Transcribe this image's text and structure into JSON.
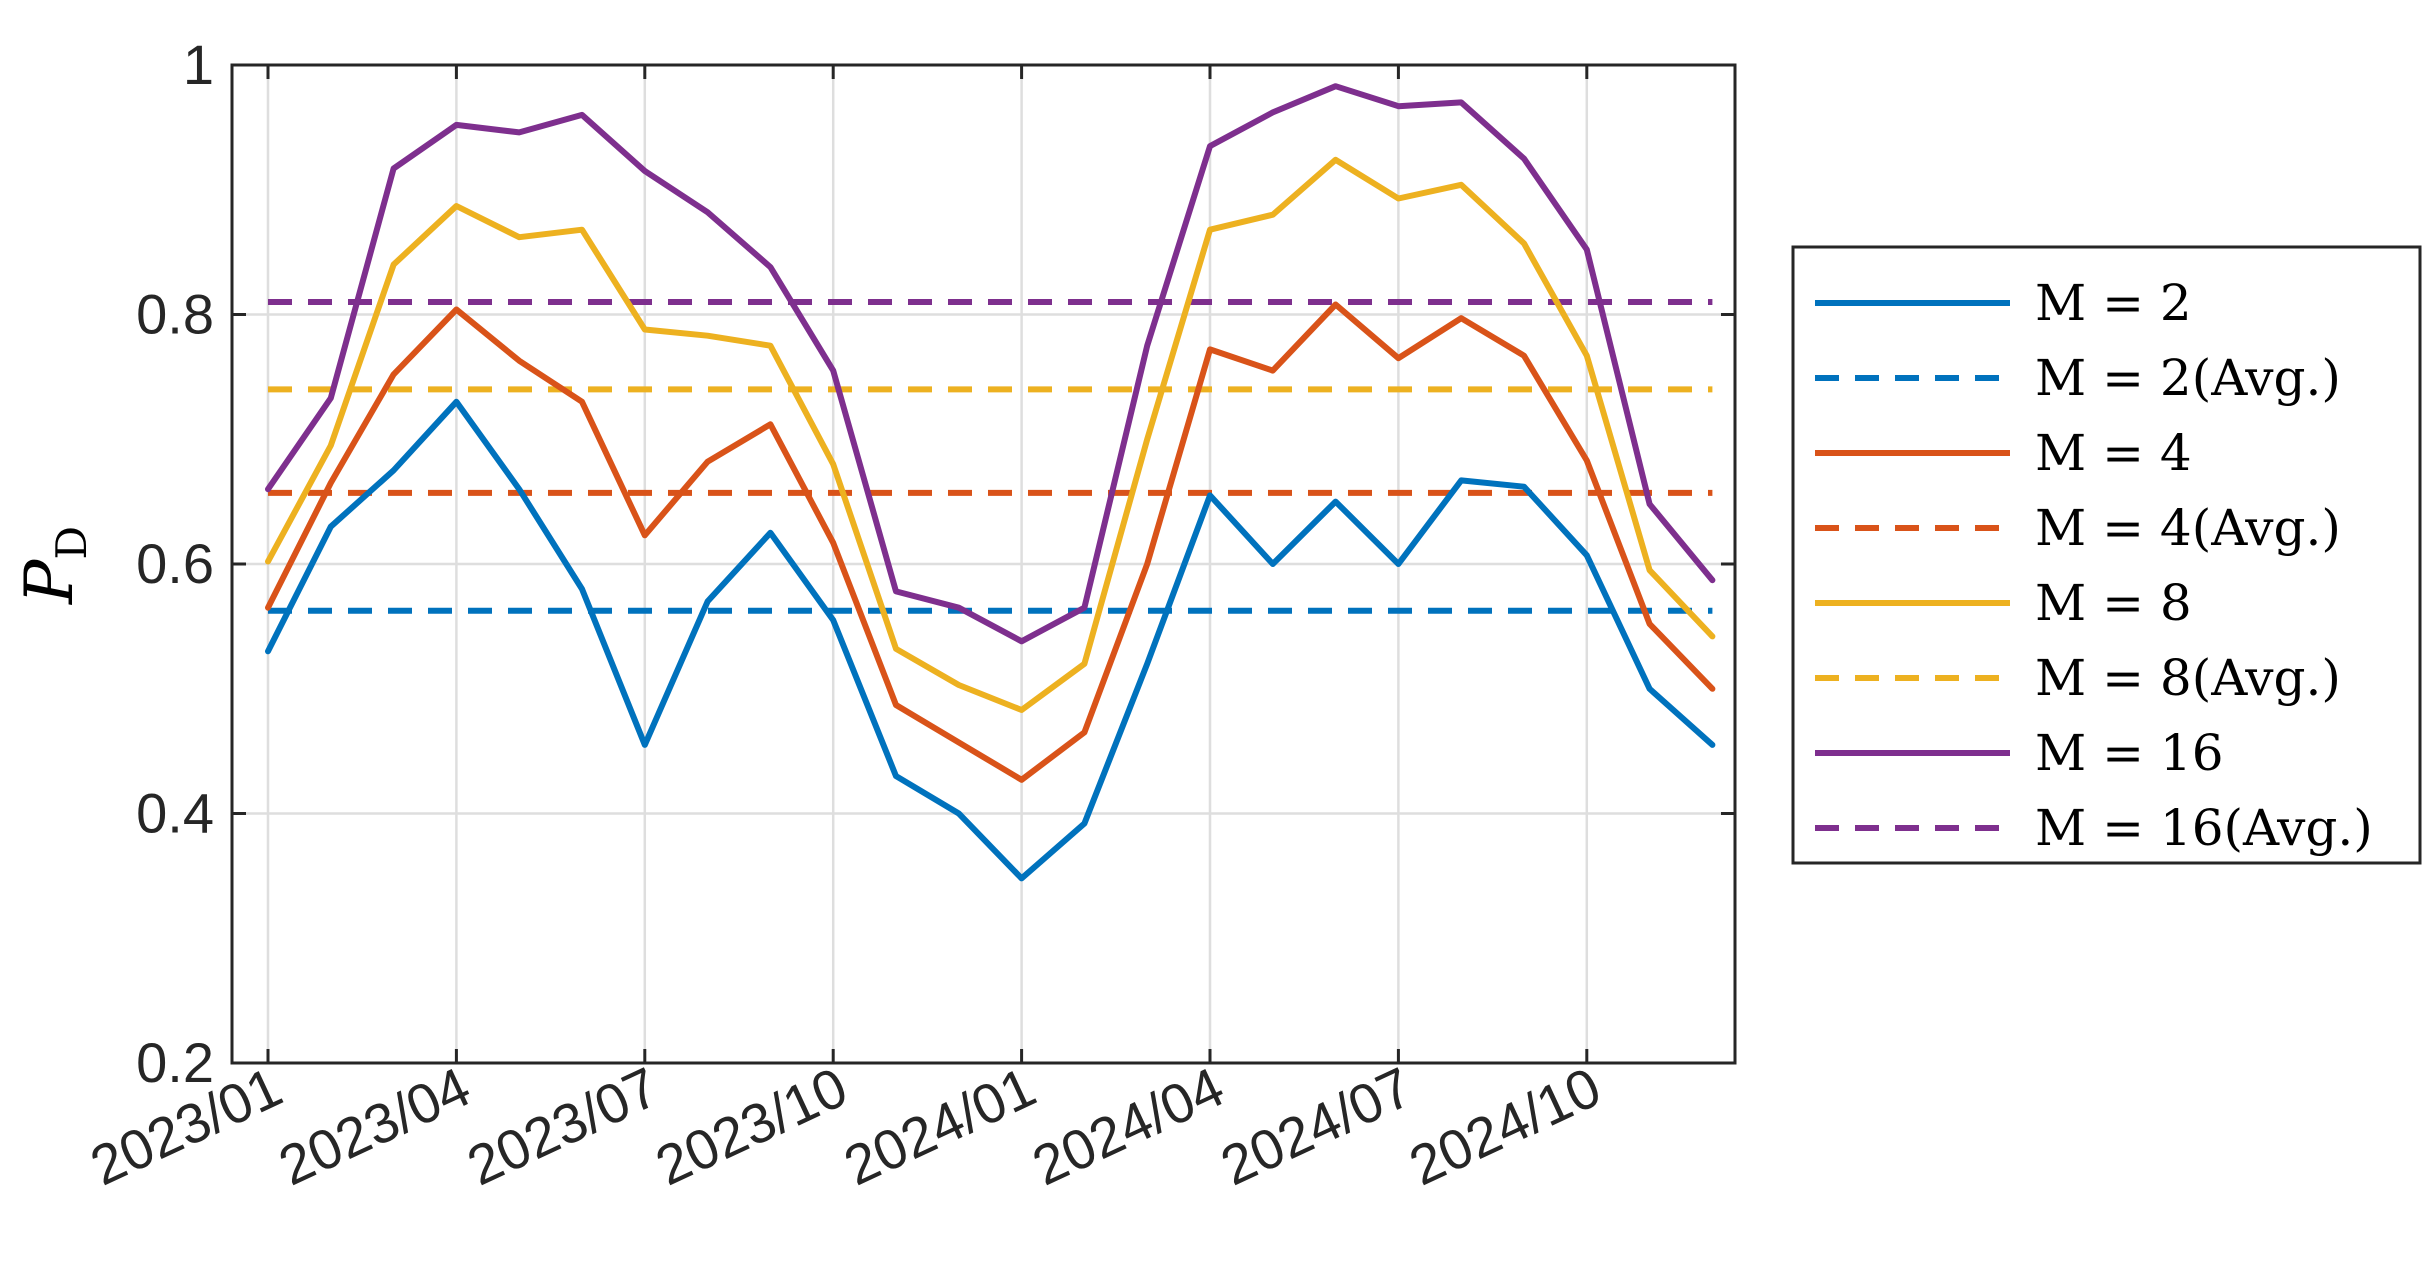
{
  "chart_data": {
    "type": "line",
    "title": "",
    "xlabel": "",
    "ylabel": {
      "main": "P",
      "sub": "D"
    },
    "ylim": [
      0.2,
      1.0
    ],
    "yticks": [
      0.2,
      0.4,
      0.6,
      0.8,
      1.0
    ],
    "ytick_labels": [
      "0.2",
      "0.4",
      "0.6",
      "0.8",
      "1"
    ],
    "xticks": [
      "2023/01",
      "2023/04",
      "2023/07",
      "2023/10",
      "2024/01",
      "2024/04",
      "2024/07",
      "2024/10"
    ],
    "x": [
      "2023/01",
      "2023/02",
      "2023/03",
      "2023/04",
      "2023/05",
      "2023/06",
      "2023/07",
      "2023/08",
      "2023/09",
      "2023/10",
      "2023/11",
      "2023/12",
      "2024/01",
      "2024/02",
      "2024/03",
      "2024/04",
      "2024/05",
      "2024/06",
      "2024/07",
      "2024/08",
      "2024/09",
      "2024/10",
      "2024/11",
      "2024/12"
    ],
    "grid": true,
    "legend_position": "outside-right",
    "series": [
      {
        "name": "M = 2",
        "color": "#0072BD",
        "style": "solid",
        "values": [
          0.53,
          0.63,
          0.675,
          0.73,
          0.66,
          0.58,
          0.455,
          0.57,
          0.625,
          0.555,
          0.43,
          0.4,
          0.348,
          0.392,
          0.52,
          0.655,
          0.6,
          0.65,
          0.6,
          0.667,
          0.662,
          0.607,
          0.5,
          0.455
        ]
      },
      {
        "name": "M = 2(Avg.)",
        "color": "#0072BD",
        "style": "dashed",
        "value": 0.5625
      },
      {
        "name": "M = 4",
        "color": "#D95319",
        "style": "solid",
        "values": [
          0.565,
          0.665,
          0.752,
          0.804,
          0.763,
          0.73,
          0.623,
          0.682,
          0.712,
          0.617,
          0.487,
          0.457,
          0.427,
          0.465,
          0.6,
          0.772,
          0.755,
          0.808,
          0.765,
          0.797,
          0.767,
          0.683,
          0.552,
          0.5
        ]
      },
      {
        "name": "M = 4(Avg.)",
        "color": "#D95319",
        "style": "dashed",
        "value": 0.657
      },
      {
        "name": "M = 8",
        "color": "#EDB120",
        "style": "solid",
        "values": [
          0.602,
          0.695,
          0.84,
          0.887,
          0.862,
          0.868,
          0.788,
          0.783,
          0.775,
          0.68,
          0.532,
          0.503,
          0.483,
          0.52,
          0.7,
          0.868,
          0.88,
          0.924,
          0.893,
          0.904,
          0.857,
          0.767,
          0.595,
          0.542
        ]
      },
      {
        "name": "M = 8(Avg.)",
        "color": "#EDB120",
        "style": "dashed",
        "value": 0.74
      },
      {
        "name": "M = 16",
        "color": "#7E2F8E",
        "style": "solid",
        "values": [
          0.66,
          0.733,
          0.917,
          0.952,
          0.946,
          0.96,
          0.915,
          0.882,
          0.838,
          0.755,
          0.578,
          0.565,
          0.538,
          0.565,
          0.775,
          0.935,
          0.962,
          0.983,
          0.967,
          0.97,
          0.925,
          0.852,
          0.648,
          0.587
        ]
      },
      {
        "name": "M = 16(Avg.)",
        "color": "#7E2F8E",
        "style": "dashed",
        "value": 0.81
      }
    ]
  }
}
